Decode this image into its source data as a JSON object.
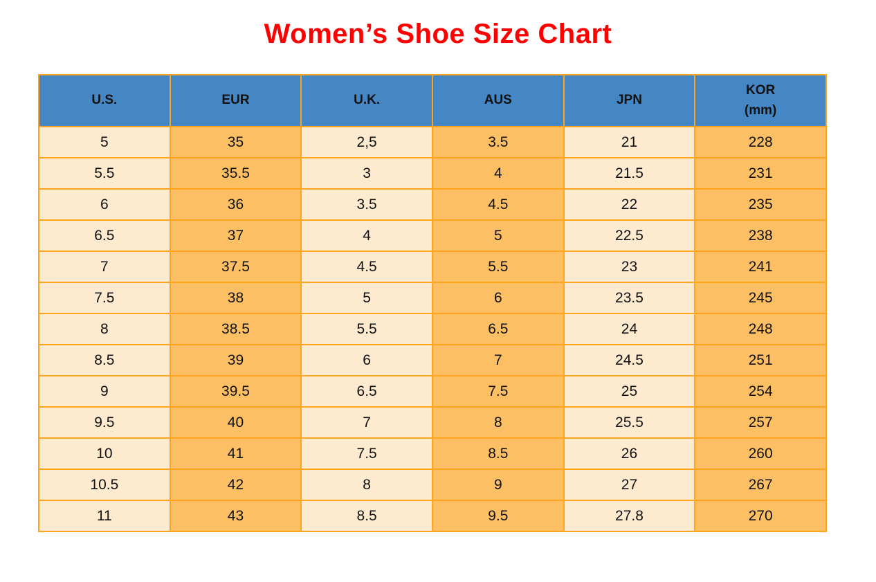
{
  "page": {
    "title": "Women’s Shoe Size Chart"
  },
  "colors": {
    "title": "#ff0000",
    "header_bg": "#4587c5",
    "light_cell": "#fdeacf",
    "orange_cell": "#fdbf63",
    "border": "#ffa41d",
    "text": "#111111"
  },
  "table": {
    "columns": [
      {
        "label": "U.S."
      },
      {
        "label": "EUR"
      },
      {
        "label": "U.K."
      },
      {
        "label": "AUS"
      },
      {
        "label": "JPN"
      },
      {
        "label": "KOR",
        "sublabel": "(mm)"
      }
    ],
    "rows": [
      [
        "5",
        "35",
        "2,5",
        "3.5",
        "21",
        "228"
      ],
      [
        "5.5",
        "35.5",
        "3",
        "4",
        "21.5",
        "231"
      ],
      [
        "6",
        "36",
        "3.5",
        "4.5",
        "22",
        "235"
      ],
      [
        "6.5",
        "37",
        "4",
        "5",
        "22.5",
        "238"
      ],
      [
        "7",
        "37.5",
        "4.5",
        "5.5",
        "23",
        "241"
      ],
      [
        "7.5",
        "38",
        "5",
        "6",
        "23.5",
        "245"
      ],
      [
        "8",
        "38.5",
        "5.5",
        "6.5",
        "24",
        "248"
      ],
      [
        "8.5",
        "39",
        "6",
        "7",
        "24.5",
        "251"
      ],
      [
        "9",
        "39.5",
        "6.5",
        "7.5",
        "25",
        "254"
      ],
      [
        "9.5",
        "40",
        "7",
        "8",
        "25.5",
        "257"
      ],
      [
        "10",
        "41",
        "7.5",
        "8.5",
        "26",
        "260"
      ],
      [
        "10.5",
        "42",
        "8",
        "9",
        "27",
        "267"
      ],
      [
        "11",
        "43",
        "8.5",
        "9.5",
        "27.8",
        "270"
      ]
    ]
  },
  "chart_data": {
    "type": "table",
    "title": "Women’s Shoe Size Chart",
    "columns": [
      "U.S.",
      "EUR",
      "U.K.",
      "AUS",
      "JPN",
      "KOR (mm)"
    ],
    "rows": [
      [
        "5",
        "35",
        "2,5",
        "3.5",
        "21",
        "228"
      ],
      [
        "5.5",
        "35.5",
        "3",
        "4",
        "21.5",
        "231"
      ],
      [
        "6",
        "36",
        "3.5",
        "4.5",
        "22",
        "235"
      ],
      [
        "6.5",
        "37",
        "4",
        "5",
        "22.5",
        "238"
      ],
      [
        "7",
        "37.5",
        "4.5",
        "5.5",
        "23",
        "241"
      ],
      [
        "7.5",
        "38",
        "5",
        "6",
        "23.5",
        "245"
      ],
      [
        "8",
        "38.5",
        "5.5",
        "6.5",
        "24",
        "248"
      ],
      [
        "8.5",
        "39",
        "6",
        "7",
        "24.5",
        "251"
      ],
      [
        "9",
        "39.5",
        "6.5",
        "7.5",
        "25",
        "254"
      ],
      [
        "9.5",
        "40",
        "7",
        "8",
        "25.5",
        "257"
      ],
      [
        "10",
        "41",
        "7.5",
        "8.5",
        "26",
        "260"
      ],
      [
        "10.5",
        "42",
        "8",
        "9",
        "27",
        "267"
      ],
      [
        "11",
        "43",
        "8.5",
        "9.5",
        "27.8",
        "270"
      ]
    ]
  }
}
